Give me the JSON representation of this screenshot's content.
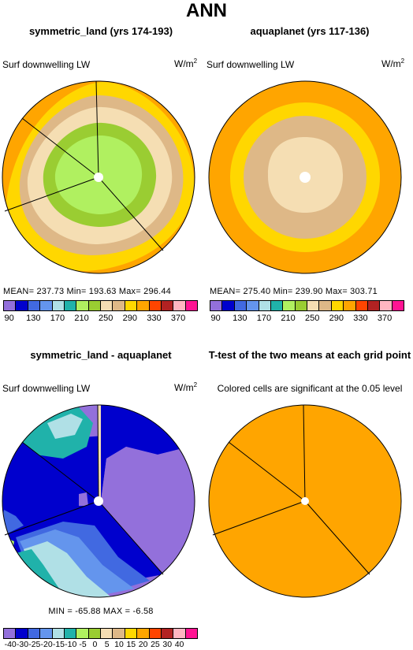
{
  "title": "ANN",
  "panels": {
    "p1": {
      "title": "symmetric_land (yrs 174-193)",
      "left_label": "Surf downwelling LW",
      "units": "W/m",
      "units_sup": "2",
      "stats": "MEAN= 237.73   Min= 193.63   Max= 296.44"
    },
    "p2": {
      "title": "aquaplanet (yrs 117-136)",
      "left_label": "Surf downwelling LW",
      "units": "W/m",
      "units_sup": "2",
      "stats": "MEAN= 275.40   Min= 239.90   Max= 303.71"
    },
    "p3": {
      "title": "symmetric_land - aquaplanet",
      "left_label": "Surf downwelling LW",
      "units": "W/m",
      "units_sup": "2",
      "stats": "MIN = -65.88  MAX =  -6.58"
    },
    "p4": {
      "title": "T-test of the two means at each grid point",
      "left_label": "Colored cells are significant at the 0.05 level"
    }
  },
  "colorbar_abs": {
    "colors": [
      "#9370db",
      "#0000cd",
      "#4169e1",
      "#6495ed",
      "#b0e0e6",
      "#20b2aa",
      "#b0f060",
      "#9acd32",
      "#f5deb3",
      "#deb887",
      "#ffd700",
      "#ffa500",
      "#ff4500",
      "#b22222",
      "#ffb6c1",
      "#ff1493"
    ],
    "ticks": [
      "90",
      "130",
      "170",
      "210",
      "250",
      "290",
      "330",
      "370"
    ]
  },
  "colorbar_diff": {
    "colors": [
      "#9370db",
      "#0000cd",
      "#4169e1",
      "#6495ed",
      "#b0e0e6",
      "#20b2aa",
      "#b0f060",
      "#9acd32",
      "#f5deb3",
      "#deb887",
      "#ffd700",
      "#ffa500",
      "#ff4500",
      "#b22222",
      "#ffb6c1",
      "#ff1493"
    ],
    "ticks": [
      "-40",
      "-30",
      "-25",
      "-20",
      "-15",
      "-10",
      "-5",
      "0",
      "5",
      "10",
      "15",
      "20",
      "25",
      "30",
      "40"
    ]
  },
  "colors": {
    "significance": "#ffa500",
    "land_boundary": "#000000"
  }
}
